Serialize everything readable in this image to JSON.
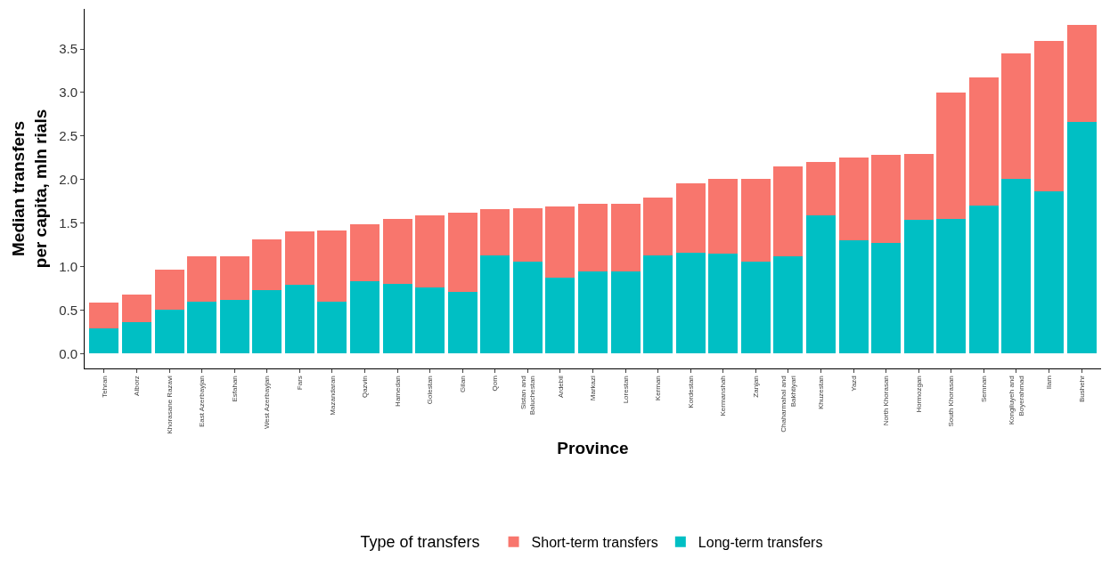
{
  "chart_data": {
    "type": "bar",
    "stacked": true,
    "xlabel": "Province",
    "ylabel": "Median transfers\nper capita, mln rials",
    "legend_title": "Type of transfers",
    "legend": "bottom",
    "grid": false,
    "categories": [
      "Tehran",
      "Alborz",
      "Khorasane Razavi",
      "East Azerbayjan",
      "Esfahan",
      "West Azerbayjan",
      "Fars",
      "Mazandaran",
      "Qazvin",
      "Hamedan",
      "Golestan",
      "Gilan",
      "Qom",
      "Sistan and\nBaluchestan",
      "Ardebil",
      "Markazi",
      "Lorestan",
      "Kerman",
      "Kordestan",
      "Kermanshah",
      "Zanjan",
      "Chaharmahal and\nBakhtiyari",
      "Khuzestan",
      "Yazd",
      "North Khorasan",
      "Hormozgan",
      "South Khorasan",
      "Semnan",
      "Kongiluyeh and\nBoyerahmad",
      "Ilam",
      "Bushehr"
    ],
    "series": [
      {
        "name": "Long-term transfers",
        "color": "#00bfc4",
        "values": [
          0.29,
          0.36,
          0.5,
          0.6,
          0.62,
          0.73,
          0.79,
          0.6,
          0.83,
          0.8,
          0.76,
          0.71,
          1.13,
          1.06,
          0.87,
          0.94,
          0.94,
          1.13,
          1.16,
          1.15,
          1.06,
          1.12,
          1.59,
          1.3,
          1.27,
          1.54,
          1.55,
          1.7,
          2.01,
          1.86,
          2.66
        ]
      },
      {
        "name": "Short-term transfers",
        "color": "#f8766d",
        "values": [
          0.3,
          0.32,
          0.46,
          0.52,
          0.5,
          0.58,
          0.61,
          0.81,
          0.66,
          0.75,
          0.83,
          0.91,
          0.53,
          0.61,
          0.82,
          0.78,
          0.78,
          0.66,
          0.8,
          0.86,
          0.95,
          1.03,
          0.61,
          0.95,
          1.01,
          0.75,
          1.45,
          1.47,
          1.44,
          1.73,
          1.12
        ]
      }
    ],
    "ylim": [
      -0.17,
      3.96
    ],
    "yticks": [
      {
        "value": 0,
        "label": "0.0"
      },
      {
        "value": 0.5,
        "label": "0.5"
      },
      {
        "value": 1,
        "label": "1.0"
      },
      {
        "value": 1.5,
        "label": "1.5"
      },
      {
        "value": 2,
        "label": "2.0"
      },
      {
        "value": 2.5,
        "label": "2.5"
      },
      {
        "value": 3,
        "label": "3.0"
      },
      {
        "value": 3.5,
        "label": "3.5"
      }
    ]
  }
}
